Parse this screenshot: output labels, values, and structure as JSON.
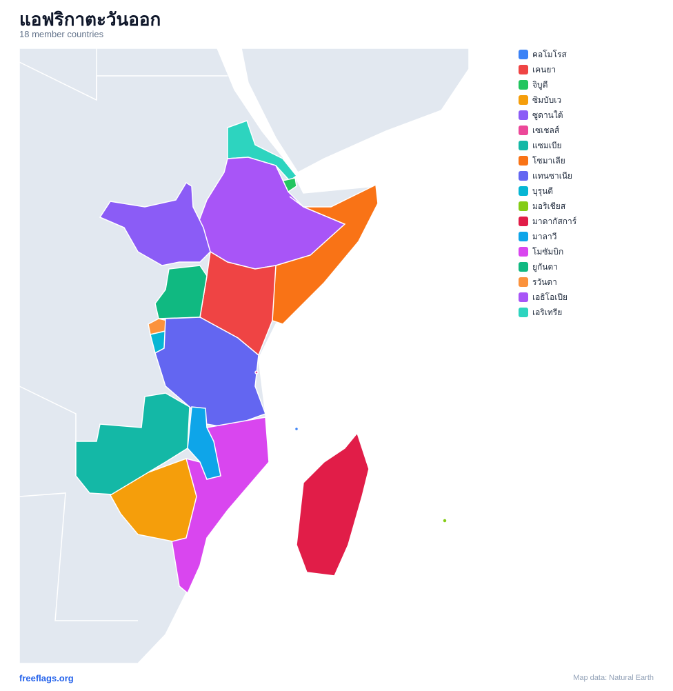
{
  "header": {
    "title": "แอฟริกาตะวันออก",
    "subtitle": "18 member countries"
  },
  "legend": [
    {
      "name": "คอโมโรส",
      "color": "#3b82f6"
    },
    {
      "name": "เคนยา",
      "color": "#ef4444"
    },
    {
      "name": "จิบูตี",
      "color": "#22c55e"
    },
    {
      "name": "ซิมบับเว",
      "color": "#f59e0b"
    },
    {
      "name": "ซูดานใต้",
      "color": "#8b5cf6"
    },
    {
      "name": "เซเชลส์",
      "color": "#ec4899"
    },
    {
      "name": "แซมเบีย",
      "color": "#14b8a6"
    },
    {
      "name": "โซมาเลีย",
      "color": "#f97316"
    },
    {
      "name": "แทนซาเนีย",
      "color": "#6366f1"
    },
    {
      "name": "บุรุนดี",
      "color": "#06b6d4"
    },
    {
      "name": "มอริเชียส",
      "color": "#84cc16"
    },
    {
      "name": "มาดากัสการ์",
      "color": "#e11d48"
    },
    {
      "name": "มาลาวี",
      "color": "#0ea5e9"
    },
    {
      "name": "โมซัมบิก",
      "color": "#d946ef"
    },
    {
      "name": "ยูกันดา",
      "color": "#10b981"
    },
    {
      "name": "รวันดา",
      "color": "#fb923c"
    },
    {
      "name": "เอธิโอเปีย",
      "color": "#a855f7"
    },
    {
      "name": "เอริเทรีย",
      "color": "#2dd4bf"
    }
  ],
  "footer": {
    "site": "freeflags.org",
    "credit": "Map data: Natural Earth"
  }
}
